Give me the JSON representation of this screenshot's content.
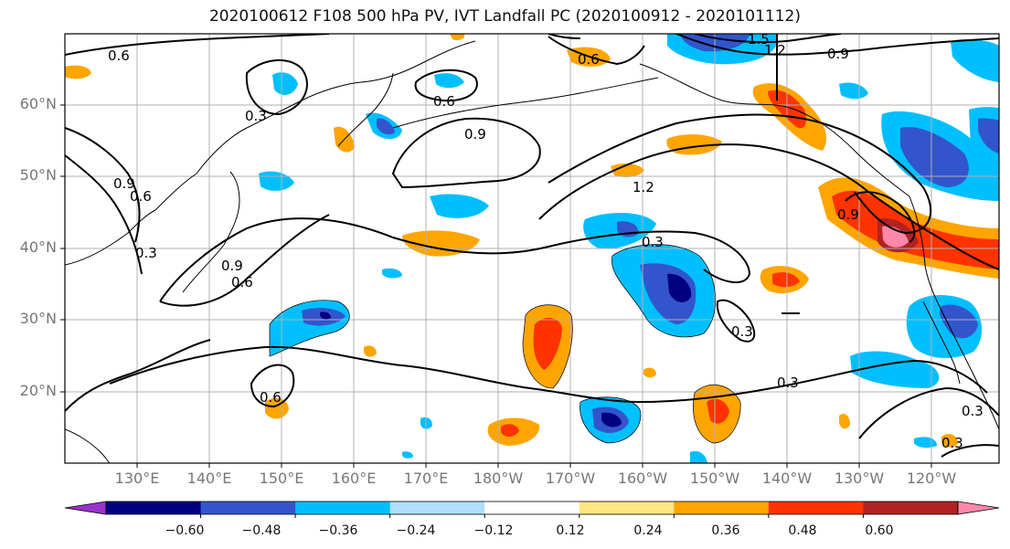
{
  "title": "2020100612 F108 500 hPa PV, IVT Landfall PC (2020100912 - 2020101112)",
  "map": {
    "lat_labels": [
      "60°N",
      "50°N",
      "40°N",
      "30°N",
      "20°N"
    ],
    "lon_labels": [
      "130°E",
      "140°E",
      "150°E",
      "160°E",
      "170°E",
      "180°W",
      "170°W",
      "160°W",
      "150°W",
      "140°W",
      "130°W",
      "120°W"
    ],
    "contour_labels": [
      "0.6",
      "0.6",
      "1.5",
      "1.2",
      "0.9",
      "0.3",
      "0.6",
      "0.9",
      "0.9",
      "0.6",
      "0.3",
      "1.2",
      "0.9",
      "0.3",
      "0.9",
      "0.6",
      "0.3",
      "0.6",
      "0.3",
      "0.3",
      "0.3"
    ]
  },
  "colorbar": {
    "ticks": [
      "−0.60",
      "−0.48",
      "−0.36",
      "−0.24",
      "−0.12",
      "0.12",
      "0.24",
      "0.36",
      "0.48",
      "0.60"
    ],
    "colors": [
      "#9933cc",
      "#000080",
      "#3355cc",
      "#00bfff",
      "#b0e0ff",
      "#ffffff",
      "#ffe680",
      "#ffa500",
      "#ff3300",
      "#b22222",
      "#ff88aa"
    ],
    "extend": "both"
  }
}
